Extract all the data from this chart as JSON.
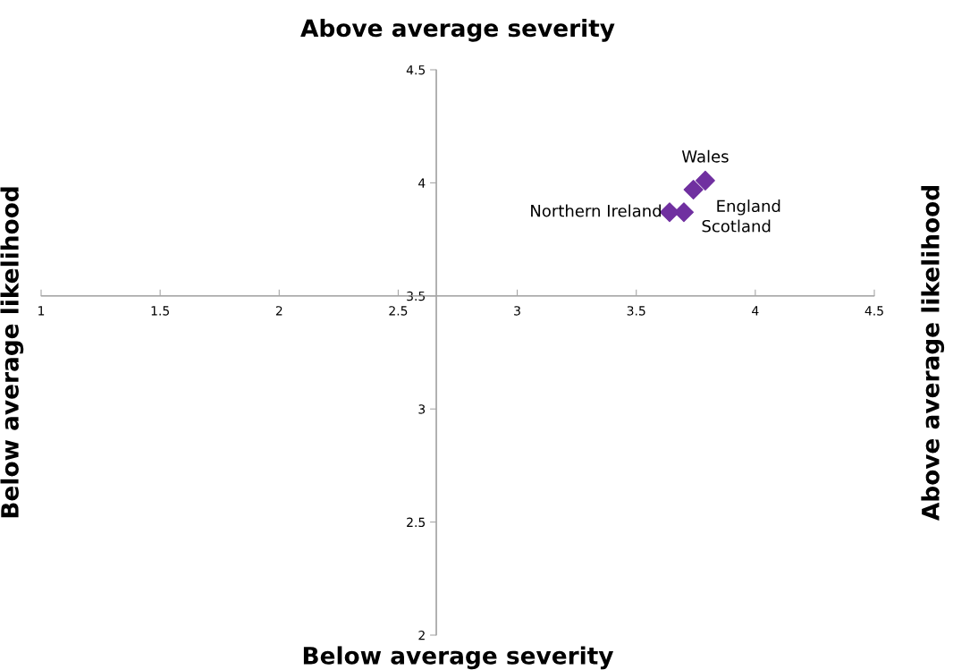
{
  "chart_data": {
    "type": "scatter",
    "x": [
      3.79,
      3.74,
      3.7,
      3.64
    ],
    "series": [
      {
        "color": "#7030a0",
        "values": [
          4.01,
          3.97,
          3.87,
          3.87
        ]
      }
    ],
    "marker": "diamond",
    "xlim": [
      1,
      4.5
    ],
    "xticks": [
      1,
      1.5,
      2,
      2.5,
      3,
      3.5,
      4,
      4.5
    ],
    "ylim": [
      2,
      4.5
    ],
    "yticks": [
      2,
      2.5,
      3,
      3.5,
      4,
      4.5
    ],
    "grid": false,
    "legend": false,
    "ref_lines": [
      {
        "axis": "x",
        "value": 2.66,
        "color": "#a6a6a6"
      },
      {
        "axis": "y",
        "value": 3.5,
        "color": "#a6a6a6"
      }
    ],
    "annotations": [
      {
        "text": "Wales",
        "x": 3.79,
        "y": 4.01
      },
      {
        "text": "England",
        "x": 3.74,
        "y": 3.97
      },
      {
        "text": "Scotland",
        "x": 3.7,
        "y": 3.87
      },
      {
        "text": "Northern Ireland",
        "x": 3.64,
        "y": 3.87
      },
      "Above average severity",
      "Below average severity",
      "Below average likelihood",
      "Above average likelihood"
    ]
  }
}
